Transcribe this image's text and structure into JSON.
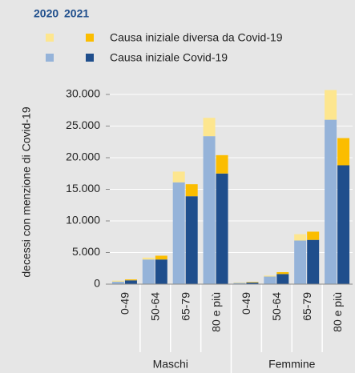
{
  "chart_data": {
    "type": "grouped-stacked-bar",
    "ylabel": "decessi con menzione di  Covid-19",
    "groups": [
      "Maschi",
      "Femmine"
    ],
    "categories": [
      "0-49",
      "50-64",
      "65-79",
      "80 e più",
      "0-49",
      "50-64",
      "65-79",
      "80 e più"
    ],
    "causes": [
      "Causa iniziale Covid-19",
      "Causa iniziale diversa da Covid-19"
    ],
    "series": [
      {
        "name": "2020",
        "stacks": [
          {
            "color": "#95b3d9",
            "values": [
              400,
              3900,
              16100,
              23400,
              200,
              1200,
              6900,
              26000
            ]
          },
          {
            "color": "#fde68f",
            "values": [
              150,
              300,
              1700,
              2900,
              80,
              150,
              1000,
              4700
            ]
          }
        ]
      },
      {
        "name": "2021",
        "stacks": [
          {
            "color": "#1f4e8c",
            "values": [
              600,
              3900,
              13900,
              17500,
              250,
              1600,
              7000,
              18800
            ]
          },
          {
            "color": "#fbbd00",
            "values": [
              150,
              600,
              1900,
              2900,
              80,
              300,
              1300,
              4300
            ]
          }
        ]
      }
    ],
    "ylim": [
      0,
      31000
    ],
    "yticks": [
      0,
      {
        "value": 5000,
        "label": "5.000"
      },
      {
        "value": 10000,
        "label": "10.000"
      },
      {
        "value": 15000,
        "label": "15.000"
      },
      {
        "value": 20000,
        "label": "20.000"
      },
      {
        "value": 25000,
        "label": "25.000"
      },
      {
        "value": 30000,
        "label": "30.000"
      }
    ],
    "grid": true
  }
}
